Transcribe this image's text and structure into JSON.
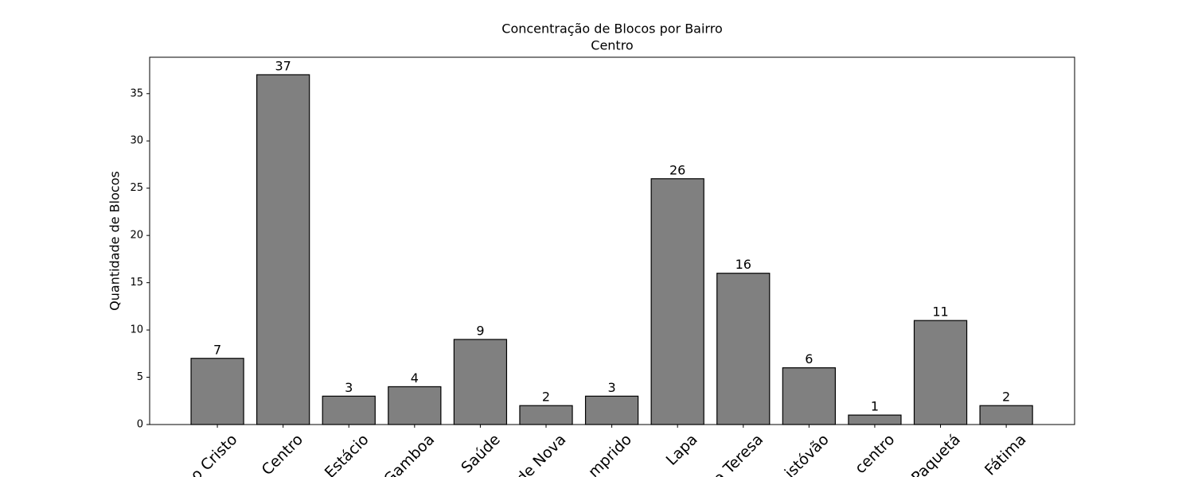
{
  "chart_data": {
    "type": "bar",
    "title": "Concentração de Blocos por Bairro",
    "subtitle": "Centro",
    "y_label": "Quantidade de Blocos",
    "categories": [
      "o Cristo",
      "Centro",
      "Estácio",
      "Gamboa",
      "Saúde",
      "de Nova",
      "mprido",
      "Lapa",
      "a Teresa",
      "istóvão",
      "centro",
      "Paquetá",
      "Fátima"
    ],
    "values": [
      7,
      37,
      3,
      4,
      9,
      2,
      3,
      26,
      16,
      6,
      1,
      11,
      2
    ],
    "color": "#808080",
    "ylim": [
      0,
      38.85
    ],
    "yticks": [
      0,
      5,
      10,
      15,
      20,
      25,
      30,
      35
    ],
    "grid": false
  }
}
